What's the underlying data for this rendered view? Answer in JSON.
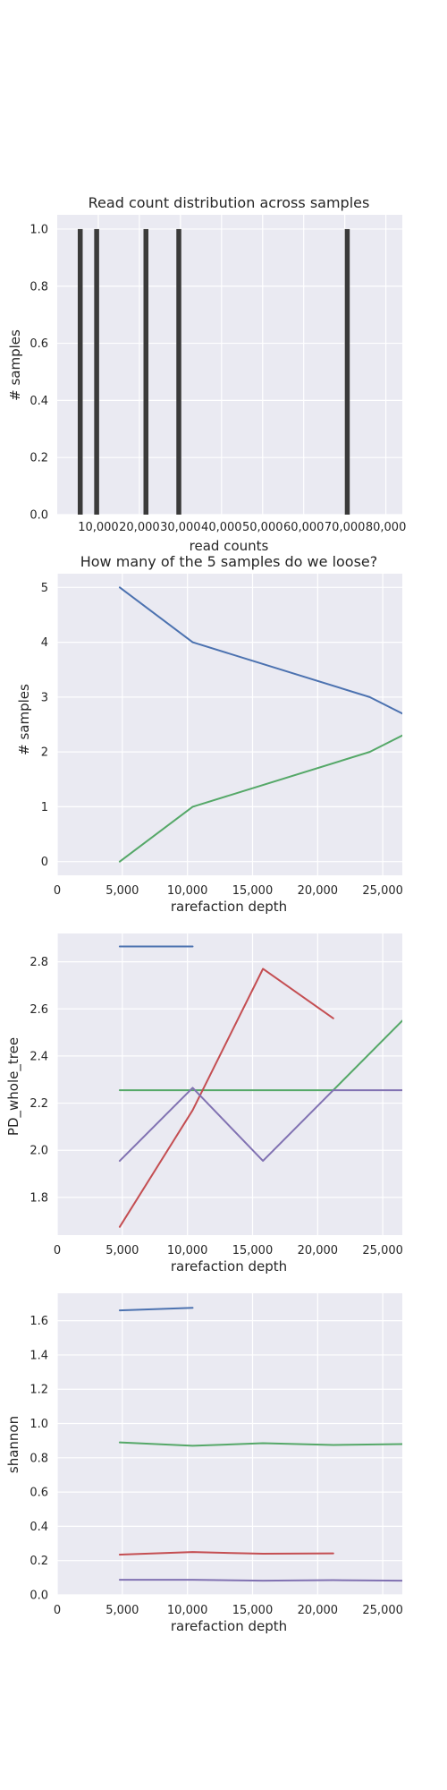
{
  "colors": {
    "background": "#ffffff",
    "panel": "#eaeaf2",
    "grid": "#ffffff",
    "bar": "#3a3a3a",
    "text": "#262626",
    "series": [
      "#4c72b0",
      "#55a868",
      "#c44e52",
      "#8172b2"
    ]
  },
  "chart_data": [
    {
      "type": "bar",
      "title": "Read count distribution across samples",
      "xlabel": "read counts",
      "ylabel": "# samples",
      "xlim": [
        0,
        84000
      ],
      "ylim": [
        0,
        1.05
      ],
      "xticks": [
        10000,
        20000,
        30000,
        40000,
        50000,
        60000,
        70000,
        80000
      ],
      "xtick_labels": [
        "10,000",
        "20,000",
        "30,000",
        "40,000",
        "50,000",
        "60,000",
        "70,000",
        "80,000"
      ],
      "yticks": [
        0,
        0.2,
        0.4,
        0.6,
        0.8,
        1.0
      ],
      "ytick_labels": [
        "0.0",
        "0.2",
        "0.4",
        "0.6",
        "0.8",
        "1.0"
      ],
      "bin_width": 1200,
      "bars": [
        {
          "x": 5000,
          "value": 1
        },
        {
          "x": 9000,
          "value": 1
        },
        {
          "x": 21000,
          "value": 1
        },
        {
          "x": 29000,
          "value": 1
        },
        {
          "x": 70000,
          "value": 1
        }
      ],
      "grid": true
    },
    {
      "type": "line",
      "title": "How many of the 5 samples do we loose?",
      "xlabel": "rarefaction depth",
      "ylabel": "# samples",
      "xlim": [
        0,
        26500
      ],
      "ylim": [
        -0.25,
        5.25
      ],
      "xticks": [
        0,
        5000,
        10000,
        15000,
        20000,
        25000
      ],
      "xtick_labels": [
        "0",
        "5,000",
        "10,000",
        "15,000",
        "20,000",
        "25,000"
      ],
      "yticks": [
        0,
        1,
        2,
        3,
        4,
        5
      ],
      "ytick_labels": [
        "0",
        "1",
        "2",
        "3",
        "4",
        "5"
      ],
      "series": [
        {
          "x": [
            4800,
            10400,
            24000,
            26500
          ],
          "y": [
            5,
            4,
            3,
            2.7
          ]
        },
        {
          "x": [
            4800,
            10400,
            24000,
            26500
          ],
          "y": [
            0,
            1,
            2,
            2.3
          ]
        }
      ],
      "grid": true
    },
    {
      "type": "line",
      "title": "",
      "xlabel": "rarefaction depth",
      "ylabel": "PD_whole_tree",
      "xlim": [
        0,
        26500
      ],
      "ylim": [
        1.64,
        2.92
      ],
      "xticks": [
        0,
        5000,
        10000,
        15000,
        20000,
        25000
      ],
      "xtick_labels": [
        "0",
        "5,000",
        "10,000",
        "15,000",
        "20,000",
        "25,000"
      ],
      "yticks": [
        1.8,
        2.0,
        2.2,
        2.4,
        2.6,
        2.8
      ],
      "ytick_labels": [
        "1.8",
        "2.0",
        "2.2",
        "2.4",
        "2.6",
        "2.8"
      ],
      "series": [
        {
          "x": [
            4800,
            10400
          ],
          "y": [
            2.865,
            2.865
          ]
        },
        {
          "x": [
            4800,
            10400,
            15800,
            21200,
            26500
          ],
          "y": [
            2.255,
            2.255,
            2.255,
            2.255,
            2.55
          ]
        },
        {
          "x": [
            4800,
            10400,
            15800,
            21200
          ],
          "y": [
            1.675,
            2.17,
            2.77,
            2.56
          ]
        },
        {
          "x": [
            4800,
            10400,
            15800,
            21200,
            26500
          ],
          "y": [
            1.955,
            2.265,
            1.955,
            2.255,
            2.255
          ]
        }
      ],
      "grid": true
    },
    {
      "type": "line",
      "title": "",
      "xlabel": "rarefaction depth",
      "ylabel": "shannon",
      "xlim": [
        0,
        26500
      ],
      "ylim": [
        0,
        1.76
      ],
      "xticks": [
        0,
        5000,
        10000,
        15000,
        20000,
        25000
      ],
      "xtick_labels": [
        "0",
        "5,000",
        "10,000",
        "15,000",
        "20,000",
        "25,000"
      ],
      "yticks": [
        0,
        0.2,
        0.4,
        0.6,
        0.8,
        1.0,
        1.2,
        1.4,
        1.6
      ],
      "ytick_labels": [
        "0.0",
        "0.2",
        "0.4",
        "0.6",
        "0.8",
        "1.0",
        "1.2",
        "1.4",
        "1.6"
      ],
      "series": [
        {
          "x": [
            4800,
            10400
          ],
          "y": [
            1.66,
            1.675
          ]
        },
        {
          "x": [
            4800,
            10400,
            15800,
            21200,
            26500
          ],
          "y": [
            0.89,
            0.87,
            0.885,
            0.875,
            0.88
          ]
        },
        {
          "x": [
            4800,
            10400,
            15800,
            21200
          ],
          "y": [
            0.235,
            0.25,
            0.24,
            0.242
          ]
        },
        {
          "x": [
            4800,
            10400,
            15800,
            21200,
            26500
          ],
          "y": [
            0.088,
            0.088,
            0.083,
            0.086,
            0.083
          ]
        }
      ],
      "grid": true
    }
  ]
}
